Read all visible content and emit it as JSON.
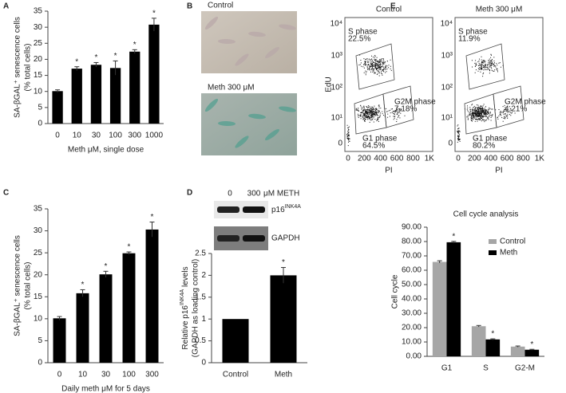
{
  "panel_letters": [
    "A",
    "B",
    "C",
    "D",
    "E"
  ],
  "chart_data": [
    {
      "type": "bar",
      "categories": [
        "0",
        "10",
        "30",
        "100",
        "300",
        "1000"
      ],
      "values": [
        10.1,
        17.1,
        18.3,
        17.3,
        22.4,
        30.8
      ],
      "errors": [
        0.4,
        0.6,
        0.7,
        2.2,
        0.6,
        2.0
      ],
      "color": "#000000",
      "ylim": [
        0,
        35
      ],
      "yticks": [
        0,
        5,
        10,
        15,
        20,
        25,
        30,
        35
      ],
      "ylabel": [
        "SA-βGAL⁺ senescence cells",
        "(% total cells)"
      ],
      "xlabel": "Meth μM, single dose",
      "annotations": [
        {
          "index": 1,
          "text": "*"
        },
        {
          "index": 2,
          "text": "*"
        },
        {
          "index": 3,
          "text": "*"
        },
        {
          "index": 4,
          "text": "*"
        },
        {
          "index": 5,
          "text": "*"
        }
      ]
    },
    {
      "type": "bar",
      "categories": [
        "0",
        "10",
        "30",
        "100",
        "300"
      ],
      "values": [
        10.1,
        15.8,
        20.1,
        24.9,
        30.3
      ],
      "errors": [
        0.4,
        0.8,
        0.7,
        0.3,
        1.7
      ],
      "color": "#000000",
      "ylim": [
        0,
        35
      ],
      "yticks": [
        0,
        5,
        10,
        15,
        20,
        25,
        30,
        35
      ],
      "ylabel": [
        "SA-βGAL⁺ senescence cells",
        "(% total cells)"
      ],
      "xlabel": "Daily meth μM for 5 days",
      "annotations": [
        {
          "index": 1,
          "text": "*"
        },
        {
          "index": 2,
          "text": "*"
        },
        {
          "index": 3,
          "text": "*"
        },
        {
          "index": 4,
          "text": "*"
        }
      ]
    },
    {
      "type": "bar",
      "categories": [
        "Control",
        "Meth"
      ],
      "values": [
        1,
        2.0
      ],
      "errors": [
        null,
        0.18
      ],
      "color": "#000000",
      "ylim": [
        0,
        2.5
      ],
      "yticks": [
        0,
        0.5,
        1,
        1.5,
        2,
        2.5
      ],
      "ylabel": [
        [
          {
            "t": "Relative p16"
          },
          {
            "t": "INK4A",
            "sup": true
          },
          {
            "t": " levels"
          }
        ],
        "(GAPDH as loading control)"
      ],
      "annotations": [
        {
          "index": 1,
          "text": "*"
        }
      ]
    },
    {
      "type": "bar",
      "title": "Cell cycle analysis",
      "categories": [
        "G1",
        "S",
        "G2-M"
      ],
      "series": [
        {
          "name": "Control",
          "color": "#a6a6a6",
          "values": [
            65.8,
            21.0,
            6.8
          ],
          "errors": [
            0.8,
            0.5,
            0.4
          ]
        },
        {
          "name": "Meth",
          "color": "#000000",
          "values": [
            79.5,
            11.8,
            4.6
          ],
          "errors": [
            0.6,
            0.4,
            0.3
          ]
        }
      ],
      "ylim": [
        0,
        90
      ],
      "yticks": [
        {
          "value": 0,
          "label": "0.00"
        },
        {
          "value": 10,
          "label": "10.00"
        },
        {
          "value": 20,
          "label": "20.00"
        },
        {
          "value": 30,
          "label": "30.00"
        },
        {
          "value": 40,
          "label": "40.00"
        },
        {
          "value": 50,
          "label": "50.00"
        },
        {
          "value": 60,
          "label": "60.00"
        },
        {
          "value": 70,
          "label": "70.00"
        },
        {
          "value": 80,
          "label": "80.00"
        },
        {
          "value": 90,
          "label": "90.00"
        }
      ],
      "ylabel": [
        "Cell cycle"
      ],
      "legend": "right",
      "annotations": [
        {
          "series": 1,
          "index": 0,
          "text": "*"
        },
        {
          "series": 1,
          "index": 1,
          "text": "*"
        },
        {
          "series": 1,
          "index": 2,
          "text": "*"
        }
      ]
    }
  ],
  "micrographs": [
    "Control",
    "Meth 300 μM"
  ],
  "blot": {
    "lanes": [
      "0",
      "300"
    ],
    "unit": "μM METH",
    "bands": [
      [
        {
          "t": "p16"
        },
        {
          "t": "INK4A",
          "sup": true
        }
      ],
      "GAPDH"
    ]
  },
  "flow": {
    "y_axis_label": "EdU",
    "x_axis_label": "PI",
    "x_ticks": [
      "0",
      "200",
      "400",
      "600",
      "800",
      "1K"
    ],
    "y_ticks": [
      "0",
      "10¹",
      "10²",
      "10³",
      "10⁴"
    ],
    "plots": [
      {
        "title": "Control",
        "gates": [
          {
            "name": "S phase",
            "percent": "22.5%"
          },
          {
            "name": "G1 phase",
            "percent": "64.5%"
          },
          {
            "name": "G2M phase",
            "percent": "7.18%"
          }
        ]
      },
      {
        "title": "Meth 300 μM",
        "gates": [
          {
            "name": "S phase",
            "percent": "11.9%"
          },
          {
            "name": "G1 phase",
            "percent": "80.2%"
          },
          {
            "name": "G2M phase",
            "percent": "4.21%"
          }
        ]
      }
    ]
  }
}
